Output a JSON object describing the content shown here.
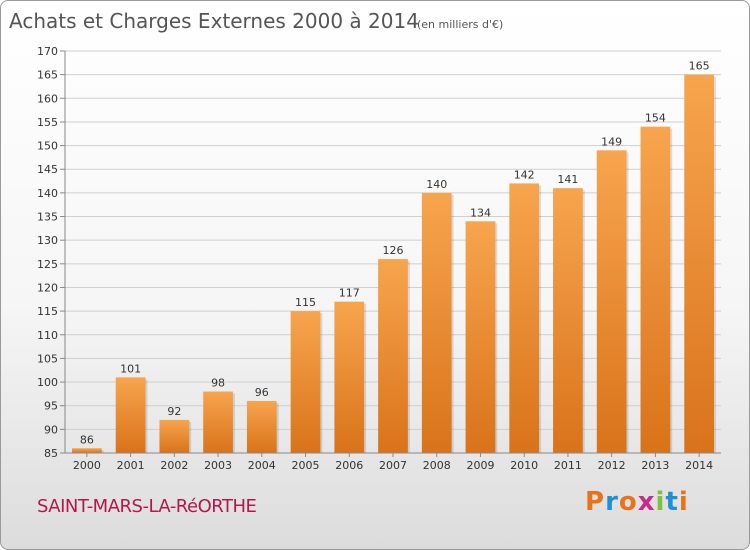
{
  "chart_data": {
    "type": "bar",
    "title": "Achats et Charges Externes 2000 à 2014",
    "subtitle": "(en milliers d'€)",
    "categories": [
      "2000",
      "2001",
      "2002",
      "2003",
      "2004",
      "2005",
      "2006",
      "2007",
      "2008",
      "2009",
      "2010",
      "2011",
      "2012",
      "2013",
      "2014"
    ],
    "values": [
      86,
      101,
      92,
      98,
      96,
      115,
      117,
      126,
      140,
      134,
      142,
      141,
      149,
      154,
      165
    ],
    "ylim": [
      85,
      170
    ],
    "yticks": [
      "85",
      "90",
      "95",
      "100",
      "105",
      "110",
      "115",
      "120",
      "125",
      "130",
      "135",
      "140",
      "145",
      "150",
      "155",
      "160",
      "165",
      "170"
    ],
    "xlabel": "",
    "ylabel": "",
    "grid": true,
    "bar_color_top": "#f7a54e",
    "bar_color_bottom": "#d9731a"
  },
  "footer": {
    "commune": "SAINT-MARS-LA-RéORTHE",
    "logo": "Proxiti",
    "logo_colors": [
      "#e8731a",
      "#1f8fd6",
      "#e8731a",
      "#c92a8a",
      "#7cc242",
      "#1f8fd6",
      "#e8731a"
    ]
  }
}
